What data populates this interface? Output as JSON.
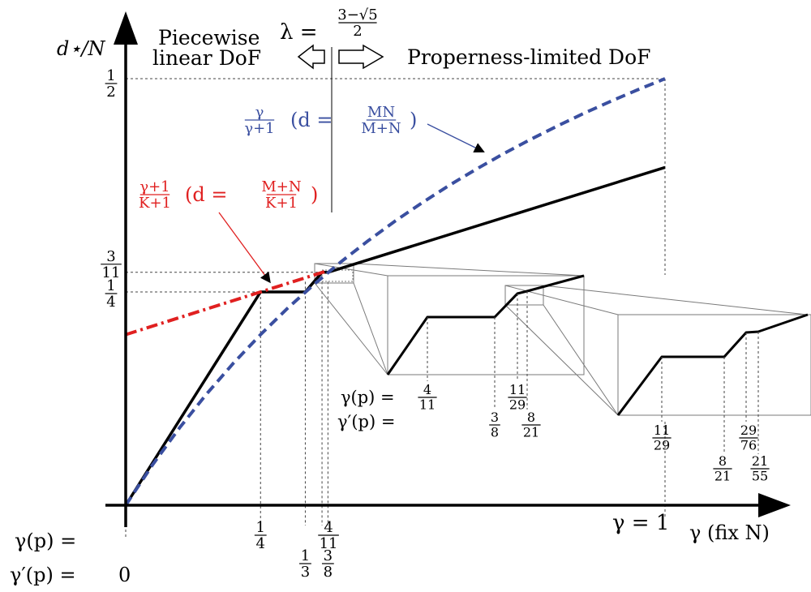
{
  "chart_data": {
    "type": "line",
    "title": "",
    "xlabel": "γ (fix N)",
    "ylabel": "d⋆/N",
    "xlim": [
      0,
      1
    ],
    "ylim": [
      0,
      0.5
    ],
    "grid": false,
    "x_ticks": [
      {
        "x": 0.25,
        "num": "1",
        "den": "4"
      },
      {
        "x": 0.333,
        "num": "1",
        "den": "3"
      },
      {
        "x": 0.364,
        "num": "4",
        "den": "11"
      },
      {
        "x": 0.375,
        "num": "3",
        "den": "8"
      }
    ],
    "y_ticks": [
      {
        "y": 0.25,
        "num": "1",
        "den": "4"
      },
      {
        "y": 0.273,
        "num": "3",
        "den": "11"
      },
      {
        "y": 0.5,
        "num": "1",
        "den": "2"
      }
    ],
    "series": [
      {
        "name": "piecewise",
        "color": "#000000",
        "style": "solid",
        "x": [
          0,
          0.25,
          0.333,
          0.364,
          0.375,
          1.0
        ],
        "y": [
          0,
          0.25,
          0.25,
          0.273,
          0.273,
          0.396
        ]
      },
      {
        "name": "upper",
        "color": "#3a4fa0",
        "style": "dashed",
        "formula": "γ/(γ+1)",
        "x": [
          0,
          0.05,
          0.1,
          0.15,
          0.2,
          0.25,
          0.3,
          0.35,
          0.4,
          0.45,
          0.5,
          0.55,
          0.6,
          0.65,
          0.7,
          0.75,
          0.8,
          0.85,
          0.9,
          0.95,
          1.0
        ],
        "y": [
          0,
          0.0476,
          0.0909,
          0.1304,
          0.1667,
          0.2,
          0.2308,
          0.2593,
          0.2857,
          0.3103,
          0.3333,
          0.3548,
          0.375,
          0.3939,
          0.4118,
          0.4286,
          0.4444,
          0.4595,
          0.4737,
          0.4872,
          0.5
        ]
      },
      {
        "name": "lower",
        "color": "#e02020",
        "style": "dashdot",
        "formula": "(γ+1)/(K+1)",
        "x": [
          0,
          0.375
        ],
        "y": [
          0.2,
          0.275
        ]
      }
    ],
    "insets": [
      {
        "gamma_row": [
          {
            "num": "4",
            "den": "11"
          },
          {
            "num": "11",
            "den": "29"
          }
        ],
        "gamma_prime_row": [
          {
            "num": "3",
            "den": "8"
          },
          {
            "num": "8",
            "den": "21"
          }
        ]
      },
      {
        "gamma_row": [
          {
            "num": "11",
            "den": "29"
          },
          {
            "num": "29",
            "den": "76"
          }
        ],
        "gamma_prime_row": [
          {
            "num": "8",
            "den": "21"
          },
          {
            "num": "21",
            "den": "55"
          }
        ]
      }
    ],
    "annotations": {
      "lambda_lhs": "λ =",
      "lambda_num": "3−√5",
      "lambda_den": "2",
      "left_region_line1": "Piecewise",
      "left_region_line2": "linear DoF",
      "right_region": "Properness-limited DoF",
      "blue_frac_num": "γ",
      "blue_frac_den": "γ+1",
      "blue_d_lhs": "(d =",
      "blue_d_num": "MN",
      "blue_d_den": "M+N",
      "blue_d_rhs": ")",
      "red_frac_num": "γ+1",
      "red_frac_den": "K+1",
      "red_d_lhs": "(d =",
      "red_d_num": "M+N",
      "red_d_den": "K+1",
      "red_d_rhs": ")",
      "gamma_row_label": "γ(p) =",
      "gamma_prime_row_label": "γ′(p) =",
      "zero_label": "0",
      "gamma_one_label": "γ = 1"
    }
  }
}
